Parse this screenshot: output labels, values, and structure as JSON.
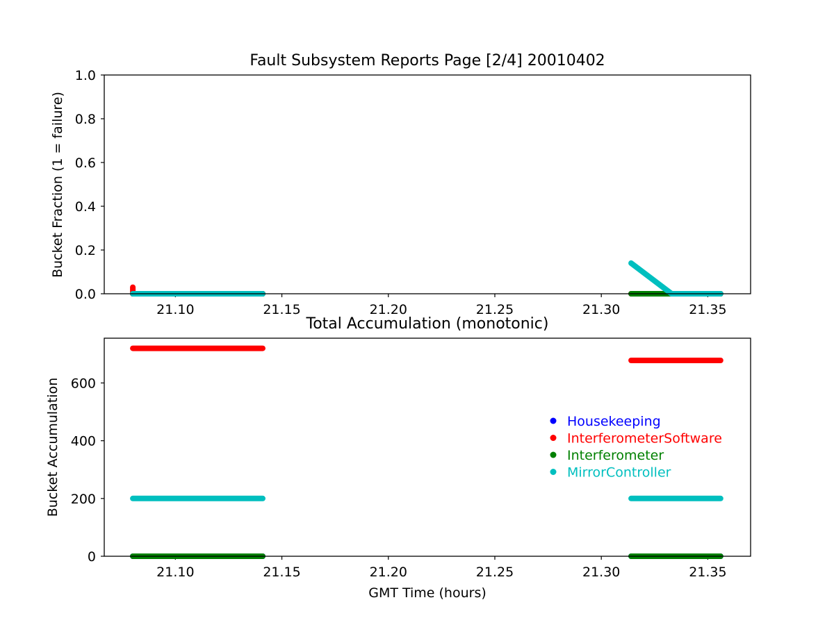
{
  "chart_data": [
    {
      "type": "scatter",
      "title": "Fault Subsystem Reports Page [2/4] 20010402",
      "xlabel": "",
      "ylabel": "Bucket Fraction (1 = failure)",
      "xlim": [
        21.0666,
        21.3701
      ],
      "ylim": [
        0.0,
        1.0
      ],
      "xticks": [
        21.1,
        21.15,
        21.2,
        21.25,
        21.3,
        21.35
      ],
      "xtick_labels": [
        "21.10",
        "21.15",
        "21.20",
        "21.25",
        "21.30",
        "21.35"
      ],
      "yticks": [
        0.0,
        0.2,
        0.4,
        0.6,
        0.8,
        1.0
      ],
      "ytick_labels": [
        "0.0",
        "0.2",
        "0.4",
        "0.6",
        "0.8",
        "1.0"
      ],
      "grid": false,
      "series": [
        {
          "name": "Housekeeping",
          "color": "#0000ff",
          "segments": [
            {
              "x": [
                21.08,
                21.141
              ],
              "y": [
                0.0,
                0.0
              ]
            },
            {
              "x": [
                21.314,
                21.356
              ],
              "y": [
                0.0,
                0.0
              ]
            }
          ]
        },
        {
          "name": "InterferometerSoftware",
          "color": "#ff0000",
          "segments": [
            {
              "x": [
                21.08,
                21.08
              ],
              "y": [
                0.03,
                0.0
              ]
            },
            {
              "x": [
                21.08,
                21.141
              ],
              "y": [
                0.0,
                0.0
              ]
            },
            {
              "x": [
                21.314,
                21.356
              ],
              "y": [
                0.0,
                0.0
              ]
            }
          ]
        },
        {
          "name": "Interferometer",
          "color": "#008000",
          "segments": [
            {
              "x": [
                21.08,
                21.141
              ],
              "y": [
                0.0,
                0.0
              ]
            },
            {
              "x": [
                21.314,
                21.356
              ],
              "y": [
                0.0,
                0.0
              ]
            }
          ]
        },
        {
          "name": "MirrorController",
          "color": "#00bfbf",
          "segments": [
            {
              "x": [
                21.08,
                21.141
              ],
              "y": [
                0.0,
                0.0
              ]
            },
            {
              "x": [
                21.314,
                21.333
              ],
              "y": [
                0.14,
                0.0
              ]
            },
            {
              "x": [
                21.333,
                21.356
              ],
              "y": [
                0.0,
                0.0
              ]
            }
          ]
        }
      ]
    },
    {
      "type": "scatter",
      "title": "Total Accumulation (monotonic)",
      "xlabel": "GMT Time (hours)",
      "ylabel": "Bucket Accumulation",
      "xlim": [
        21.0666,
        21.3701
      ],
      "ylim": [
        0,
        755
      ],
      "xticks": [
        21.1,
        21.15,
        21.2,
        21.25,
        21.3,
        21.35
      ],
      "xtick_labels": [
        "21.10",
        "21.15",
        "21.20",
        "21.25",
        "21.30",
        "21.35"
      ],
      "yticks": [
        0,
        200,
        400,
        600
      ],
      "ytick_labels": [
        "0",
        "200",
        "400",
        "600"
      ],
      "grid": false,
      "legend_placement": "center-right",
      "series": [
        {
          "name": "Housekeeping",
          "color": "#0000ff",
          "segments": [
            {
              "x": [
                21.08,
                21.141
              ],
              "y": [
                0,
                0
              ]
            },
            {
              "x": [
                21.314,
                21.356
              ],
              "y": [
                0,
                0
              ]
            }
          ]
        },
        {
          "name": "InterferometerSoftware",
          "color": "#ff0000",
          "segments": [
            {
              "x": [
                21.08,
                21.141
              ],
              "y": [
                720,
                720
              ]
            },
            {
              "x": [
                21.314,
                21.356
              ],
              "y": [
                678,
                678
              ]
            }
          ]
        },
        {
          "name": "Interferometer",
          "color": "#008000",
          "segments": [
            {
              "x": [
                21.08,
                21.141
              ],
              "y": [
                0,
                0
              ]
            },
            {
              "x": [
                21.314,
                21.356
              ],
              "y": [
                0,
                0
              ]
            }
          ]
        },
        {
          "name": "MirrorController",
          "color": "#00bfbf",
          "segments": [
            {
              "x": [
                21.08,
                21.141
              ],
              "y": [
                200,
                200
              ]
            },
            {
              "x": [
                21.314,
                21.356
              ],
              "y": [
                200,
                200
              ]
            }
          ]
        }
      ]
    }
  ]
}
